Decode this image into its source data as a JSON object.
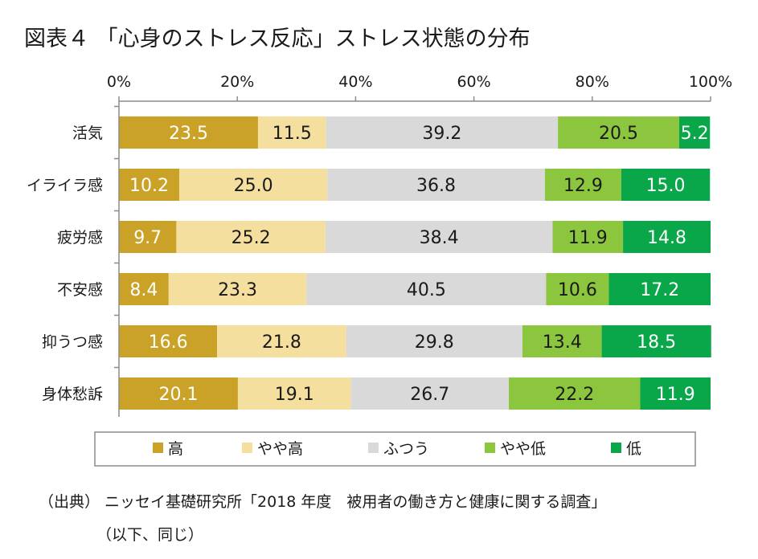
{
  "title": "図表４ 「心身のストレス反応」ストレス状態の分布",
  "source_line1": "（出典） ニッセイ基礎研究所「2018 年度　被用者の働き方と健康に関する調査」",
  "source_line2": "（以下、同じ）",
  "chart_data": {
    "type": "bar",
    "orientation": "horizontal",
    "stacked": true,
    "categories": [
      "活気",
      "イライラ感",
      "疲労感",
      "不安感",
      "抑うつ感",
      "身体愁訴"
    ],
    "series": [
      {
        "name": "高",
        "color": "#c9a227",
        "label_color": "#ffffff",
        "values": [
          23.5,
          10.2,
          9.7,
          8.4,
          16.6,
          20.1
        ]
      },
      {
        "name": "やや高",
        "color": "#f5df9f",
        "label_color": "#1a1a1a",
        "values": [
          11.5,
          25.0,
          25.2,
          23.3,
          21.8,
          19.1
        ]
      },
      {
        "name": "ふつう",
        "color": "#d9d9d9",
        "label_color": "#1a1a1a",
        "values": [
          39.2,
          36.8,
          38.4,
          40.5,
          29.8,
          26.7
        ]
      },
      {
        "name": "やや低",
        "color": "#8cc63f",
        "label_color": "#1a1a1a",
        "values": [
          20.5,
          12.9,
          11.9,
          10.6,
          13.4,
          22.2
        ]
      },
      {
        "name": "低",
        "color": "#0aa64a",
        "label_color": "#ffffff",
        "values": [
          5.2,
          15.0,
          14.8,
          17.2,
          18.5,
          11.9
        ]
      }
    ],
    "xlim": [
      0,
      100
    ],
    "xticks": [
      0,
      20,
      40,
      60,
      80,
      100
    ],
    "xtick_labels": [
      "0%",
      "20%",
      "40%",
      "60%",
      "80%",
      "100%"
    ],
    "xaxis_position": "top",
    "grid": false,
    "legend_position": "bottom"
  }
}
